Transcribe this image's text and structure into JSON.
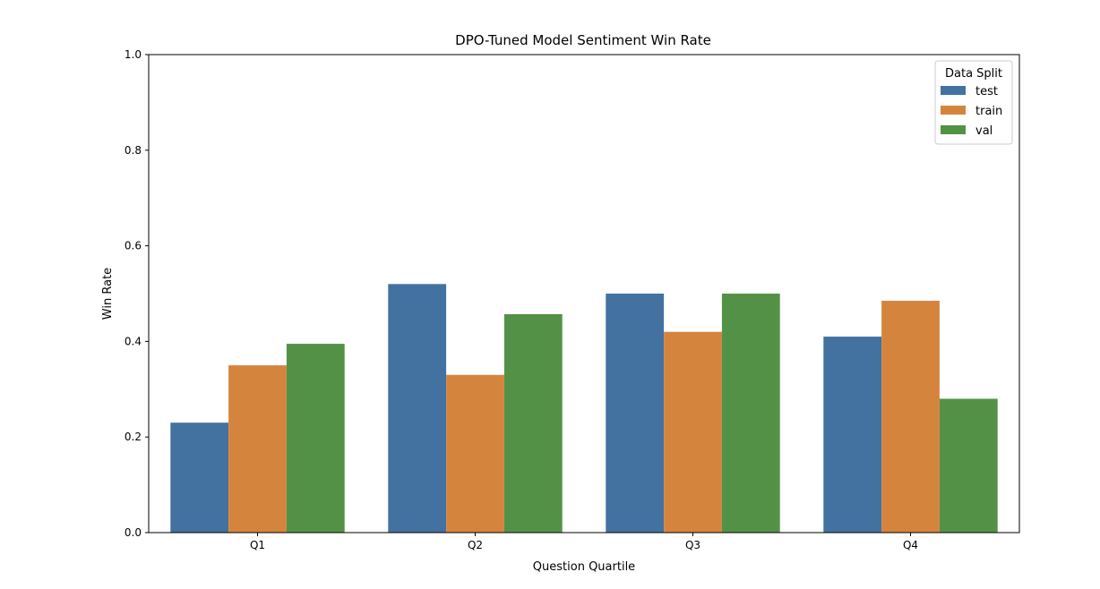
{
  "chart_data": {
    "type": "bar",
    "title": "DPO-Tuned Model Sentiment Win Rate",
    "xlabel": "Question Quartile",
    "ylabel": "Win Rate",
    "categories": [
      "Q1",
      "Q2",
      "Q3",
      "Q4"
    ],
    "ylim": [
      0.0,
      1.0
    ],
    "yticks": [
      "0.0",
      "0.2",
      "0.4",
      "0.6",
      "0.8",
      "1.0"
    ],
    "grid": false,
    "legend": {
      "title": "Data Split",
      "placement": "top-right"
    },
    "series": [
      {
        "name": "test",
        "color": "#4372a0",
        "values": [
          0.23,
          0.52,
          0.5,
          0.41
        ]
      },
      {
        "name": "train",
        "color": "#d5843e",
        "values": [
          0.35,
          0.33,
          0.42,
          0.485
        ]
      },
      {
        "name": "val",
        "color": "#539246",
        "values": [
          0.395,
          0.457,
          0.5,
          0.28
        ]
      }
    ]
  }
}
